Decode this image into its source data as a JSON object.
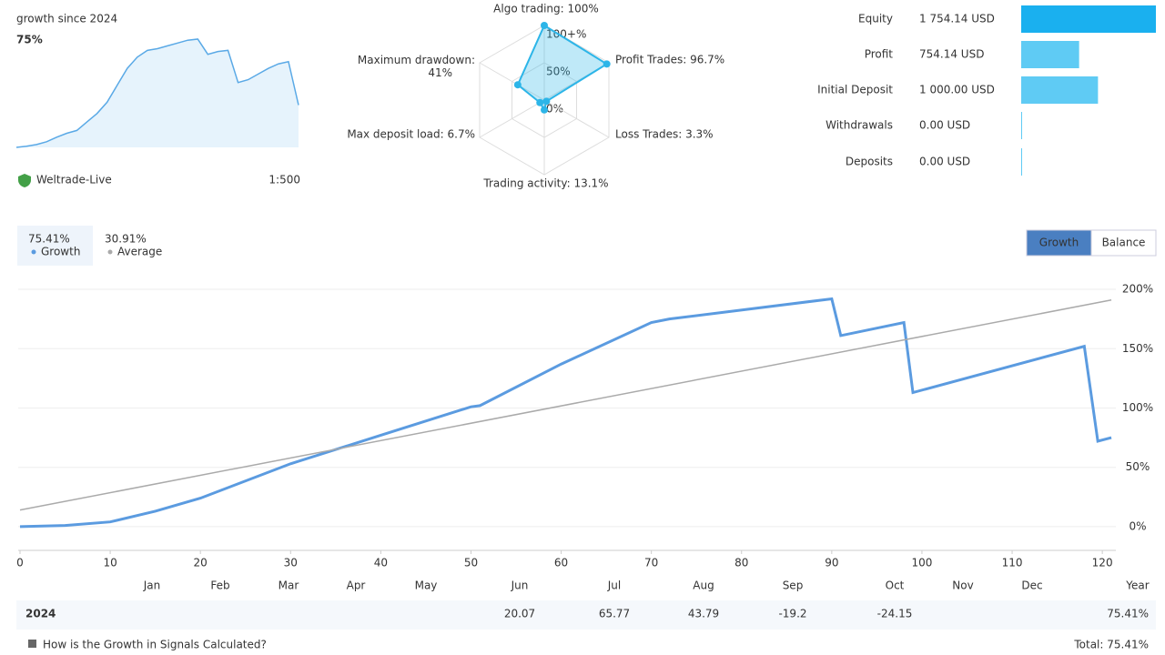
{
  "summary": {
    "title": "growth since 2024",
    "growth": "75%",
    "broker": "Weltrade-Live",
    "leverage": "1:500",
    "sparkline": {
      "type": "area",
      "values": [
        0,
        2,
        5,
        10,
        18,
        25,
        30,
        45,
        60,
        80,
        110,
        140,
        160,
        172,
        175,
        180,
        185,
        190,
        192,
        165,
        170,
        172,
        115,
        120,
        130,
        140,
        148,
        152,
        75
      ],
      "ylim": [
        0,
        200
      ],
      "color": "#5aa9e6"
    }
  },
  "radar": {
    "type": "radar",
    "axes": [
      {
        "label": "Algo trading: 100%",
        "value": 100
      },
      {
        "label": "Profit Trades: 96.7%",
        "value": 96.7
      },
      {
        "label": "Loss Trades: 3.3%",
        "value": 3.3
      },
      {
        "label": "Trading activity: 13.1%",
        "value": 13.1
      },
      {
        "label": "Max deposit load: 6.7%",
        "value": 6.7
      },
      {
        "label": "Maximum drawdown:\n41%",
        "value": 41
      }
    ],
    "rlim": [
      0,
      100
    ],
    "rticks": [
      {
        "value": 100,
        "label": "100+%"
      },
      {
        "value": 50,
        "label": "50%"
      },
      {
        "value": 0,
        "label": "0%"
      }
    ],
    "color": "#2cb5e8"
  },
  "stats": {
    "type": "bar",
    "categories": [
      "Equity",
      "Profit",
      "Initial Deposit",
      "Withdrawals",
      "Deposits"
    ],
    "values": [
      1754.14,
      754.14,
      1000,
      0,
      0
    ],
    "value_labels": [
      "1 754.14 USD",
      "754.14 USD",
      "1 000.00 USD",
      "0.00 USD",
      "0.00 USD"
    ],
    "xlim": [
      0,
      1754.14
    ],
    "colors": [
      "#1ab0ef",
      "#5fcbf4",
      "#5fcbf4",
      "#5fcbf4",
      "#5fcbf4"
    ]
  },
  "chart_data": {
    "type": "line",
    "series": [
      {
        "name": "Growth",
        "legend_value": "75.41%",
        "color": "#5b9be0",
        "x": [
          0,
          5,
          10,
          15,
          20,
          30,
          40,
          50,
          51,
          60,
          70,
          72,
          90,
          91,
          98,
          99,
          118,
          119.5,
          121
        ],
        "values": [
          0,
          1,
          4,
          13,
          24,
          53,
          77,
          101,
          102,
          137,
          172,
          175,
          192,
          161,
          172,
          113,
          152,
          72,
          75
        ]
      },
      {
        "name": "Average",
        "legend_value": "30.91%",
        "color": "#aaaaaa",
        "x": [
          0,
          121
        ],
        "values": [
          14,
          191
        ]
      }
    ],
    "xlim": [
      0,
      121.5
    ],
    "xticks": [
      0,
      10,
      20,
      30,
      40,
      50,
      60,
      70,
      80,
      90,
      100,
      110,
      120
    ],
    "ylim": [
      -20,
      210
    ],
    "yticks": [
      {
        "value": 0,
        "label": "0%"
      },
      {
        "value": 50,
        "label": "50%"
      },
      {
        "value": 100,
        "label": "100%"
      },
      {
        "value": 150,
        "label": "150%"
      },
      {
        "value": 200,
        "label": "200%"
      }
    ],
    "grid": true,
    "buttons": [
      "Growth",
      "Balance"
    ],
    "months": [
      "Jan",
      "Feb",
      "Mar",
      "Apr",
      "May",
      "Jun",
      "Jul",
      "Aug",
      "Sep",
      "Oct",
      "Nov",
      "Dec"
    ],
    "year_label": "Year"
  },
  "table": {
    "year": "2024",
    "values": [
      null,
      null,
      null,
      null,
      null,
      20.07,
      65.77,
      43.79,
      -19.2,
      -24.15,
      null,
      null
    ],
    "total": "75.41%"
  },
  "footer": {
    "link": "How is the Growth in Signals Calculated?",
    "total": "Total: 75.41%"
  }
}
